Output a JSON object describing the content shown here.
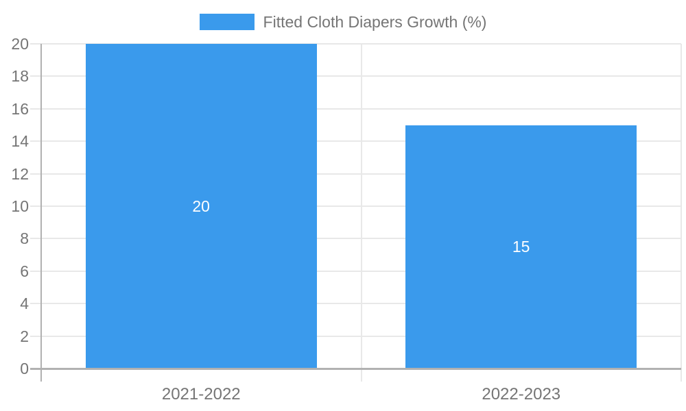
{
  "chart": {
    "legend": {
      "label": "Fitted Cloth Diapers Growth (%)"
    }
  },
  "chart_data": {
    "type": "bar",
    "title": "",
    "categories": [
      "2021-2022",
      "2022-2023"
    ],
    "values": [
      20,
      15
    ],
    "data_labels": [
      "20",
      "15"
    ],
    "series": [
      {
        "name": "Fitted Cloth Diapers Growth (%)",
        "values": [
          20,
          15
        ]
      }
    ],
    "xlabel": "",
    "ylabel": "",
    "ylim": [
      0,
      20
    ],
    "ytick_step": 2,
    "yticks": [
      0,
      2,
      4,
      6,
      8,
      10,
      12,
      14,
      16,
      18,
      20
    ],
    "grid": true,
    "legend_position": "top",
    "colors": {
      "bar": "#3a9aec",
      "grid": "#e8e8e8",
      "axis": "#b1b1b1",
      "text": "#757575",
      "data_label": "#ffffff",
      "background": "#ffffff"
    }
  }
}
